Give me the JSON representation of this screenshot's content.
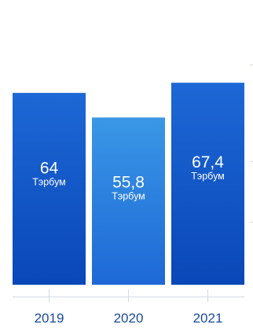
{
  "chart_data": {
    "type": "bar",
    "categories": [
      "2019",
      "2020",
      "2021"
    ],
    "values": [
      64,
      55.8,
      67.4
    ],
    "value_labels": [
      "64",
      "55,8",
      "67,4"
    ],
    "unit": "Тэрбум",
    "title": "",
    "xlabel": "",
    "ylabel": "",
    "ylim": [
      0,
      95
    ],
    "grid": false,
    "legend": "none",
    "colors": {
      "bar_dark": "#0a47b8",
      "bar_mid": "#1d68d6",
      "bar_light": "#3a97e6",
      "axis": "#d3dae4",
      "tick_label": "#1b4a9c"
    }
  }
}
